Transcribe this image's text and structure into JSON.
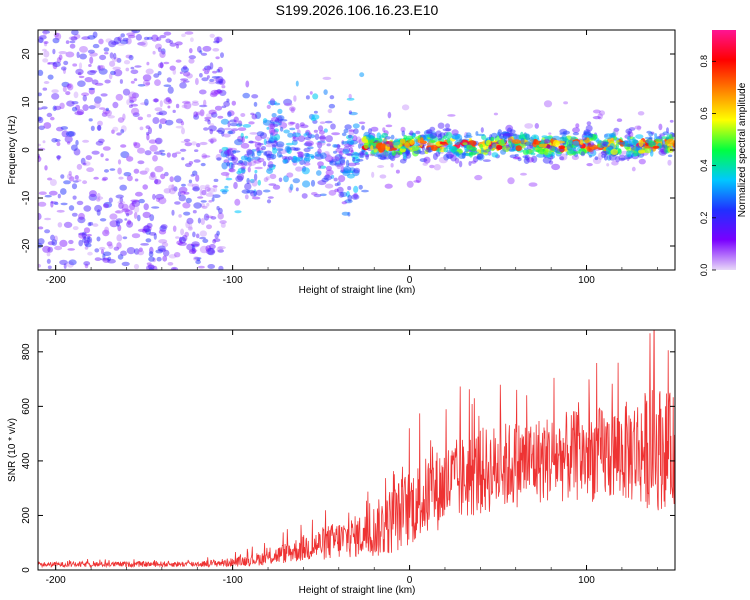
{
  "figure": {
    "title": "S199.2026.106.16.23.E10"
  },
  "chart_data": [
    {
      "type": "heatmap",
      "xlabel": "Height of straight line (km)",
      "ylabel": "Frequency (Hz)",
      "xlim": [
        -210,
        150
      ],
      "ylim": [
        -25,
        25
      ],
      "xticks": [
        -200,
        -100,
        0,
        100
      ],
      "yticks": [
        -20,
        -10,
        0,
        10,
        20
      ],
      "colorbar": {
        "label": "Normalized spectral amplitude",
        "range": [
          0,
          0.92
        ],
        "ticks": [
          "0.0",
          "0.2",
          "0.4",
          "0.6",
          "0.8"
        ],
        "tick_values": [
          0,
          0.2,
          0.4,
          0.6,
          0.8
        ],
        "colormap": [
          "#e8d8f8",
          "#7a00ff",
          "#2030ff",
          "#00c8ff",
          "#00ff40",
          "#ffff00",
          "#ff8000",
          "#ff0000",
          "#ff1493"
        ]
      },
      "regions": [
        {
          "x_range": [
            -210,
            -105
          ],
          "description_free": true,
          "mean_amplitude": 0.18,
          "freq_spread_hz": 25
        },
        {
          "x_range": [
            -105,
            -25
          ],
          "mean_amplitude": 0.28,
          "freq_spread_hz": 12
        },
        {
          "x_range": [
            -25,
            150
          ],
          "mean_amplitude": 0.55,
          "center_freq_hz": 1,
          "freq_spread_hz": 2
        }
      ]
    },
    {
      "type": "line",
      "xlabel": "Height of straight line (km)",
      "ylabel": "SNR (10 * v/v)",
      "xlim": [
        -210,
        150
      ],
      "ylim": [
        0,
        880
      ],
      "xticks": [
        -200,
        -100,
        0,
        100
      ],
      "yticks": [
        0,
        200,
        400,
        600,
        800
      ],
      "color": "#ee3333",
      "envelope": {
        "x": [
          -210,
          -120,
          -100,
          -80,
          -60,
          -40,
          -25,
          -15,
          0,
          20,
          40,
          60,
          80,
          100,
          120,
          140,
          150
        ],
        "mean": [
          20,
          22,
          28,
          45,
          80,
          110,
          130,
          160,
          230,
          310,
          360,
          390,
          410,
          420,
          430,
          450,
          440
        ],
        "spread": [
          10,
          12,
          18,
          30,
          55,
          80,
          90,
          130,
          160,
          170,
          180,
          180,
          180,
          190,
          200,
          260,
          220
        ]
      }
    }
  ]
}
